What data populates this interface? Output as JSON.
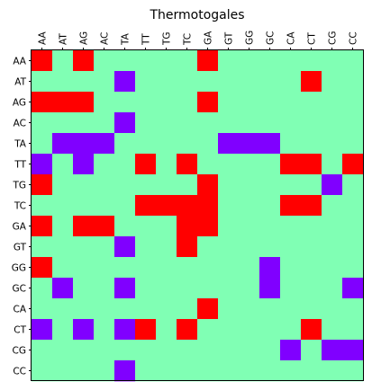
{
  "chart_data": {
    "type": "heatmap",
    "title": "Thermotogales",
    "x_categories": [
      "AA",
      "AT",
      "AG",
      "AC",
      "TA",
      "TT",
      "TG",
      "TC",
      "GA",
      "GT",
      "GG",
      "GC",
      "CA",
      "CT",
      "CG",
      "CC"
    ],
    "y_categories": [
      "AA",
      "AT",
      "AG",
      "AC",
      "TA",
      "TT",
      "TG",
      "TC",
      "GA",
      "GT",
      "GG",
      "GC",
      "CA",
      "CT",
      "CG",
      "CC"
    ],
    "x_tick_position": "top",
    "x_tick_rotation": 90,
    "values": [
      [
        1,
        0,
        1,
        0,
        0,
        0,
        0,
        0,
        1,
        0,
        0,
        0,
        0,
        0,
        0,
        0
      ],
      [
        0,
        0,
        0,
        0,
        -1,
        0,
        0,
        0,
        0,
        0,
        0,
        0,
        0,
        1,
        0,
        0
      ],
      [
        1,
        1,
        1,
        0,
        0,
        0,
        0,
        0,
        1,
        0,
        0,
        0,
        0,
        0,
        0,
        0
      ],
      [
        0,
        0,
        0,
        0,
        -1,
        0,
        0,
        0,
        0,
        0,
        0,
        0,
        0,
        0,
        0,
        0
      ],
      [
        0,
        -1,
        -1,
        -1,
        0,
        0,
        0,
        0,
        0,
        -1,
        -1,
        -1,
        0,
        0,
        0,
        0
      ],
      [
        -1,
        0,
        -1,
        0,
        0,
        1,
        0,
        1,
        0,
        0,
        0,
        0,
        1,
        1,
        0,
        1
      ],
      [
        1,
        0,
        0,
        0,
        0,
        0,
        0,
        0,
        1,
        0,
        0,
        0,
        0,
        0,
        -1,
        0
      ],
      [
        0,
        0,
        0,
        0,
        0,
        1,
        1,
        1,
        1,
        0,
        0,
        0,
        1,
        1,
        0,
        0
      ],
      [
        1,
        0,
        1,
        1,
        0,
        0,
        0,
        1,
        1,
        0,
        0,
        0,
        0,
        0,
        0,
        0
      ],
      [
        0,
        0,
        0,
        0,
        -1,
        0,
        0,
        1,
        0,
        0,
        0,
        0,
        0,
        0,
        0,
        0
      ],
      [
        1,
        0,
        0,
        0,
        0,
        0,
        0,
        0,
        0,
        0,
        0,
        -1,
        0,
        0,
        0,
        0
      ],
      [
        0,
        -1,
        0,
        0,
        -1,
        0,
        0,
        0,
        0,
        0,
        0,
        -1,
        0,
        0,
        0,
        -1
      ],
      [
        0,
        0,
        0,
        0,
        0,
        0,
        0,
        0,
        1,
        0,
        0,
        0,
        0,
        0,
        0,
        0
      ],
      [
        -1,
        0,
        -1,
        0,
        -1,
        1,
        0,
        1,
        0,
        0,
        0,
        0,
        0,
        1,
        0,
        0
      ],
      [
        0,
        0,
        0,
        0,
        0,
        0,
        0,
        0,
        0,
        0,
        0,
        0,
        -1,
        0,
        -1,
        -1
      ],
      [
        0,
        0,
        0,
        0,
        -1,
        0,
        0,
        0,
        0,
        0,
        0,
        0,
        0,
        0,
        0,
        0
      ]
    ],
    "value_range": [
      -1,
      1
    ],
    "colors": {
      "-1": "#8000ff",
      "0": "#80ffb4",
      "1": "#ff0000"
    },
    "grid": false,
    "legend": "none"
  }
}
